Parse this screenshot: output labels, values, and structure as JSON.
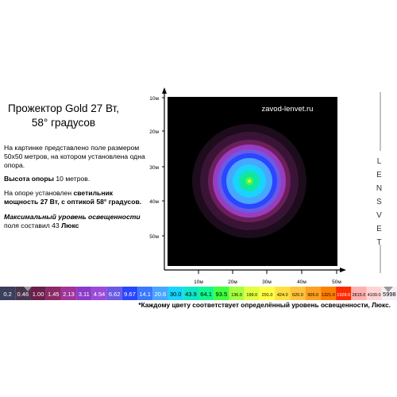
{
  "heading": [
    "Прожектор Gold 27 Вт,",
    "58° градусов"
  ],
  "paragraphs": [
    [
      "На картинке представлено  поле размером 50x50 метров, на котором установлена  одна опора."
    ],
    [
      "Высота опоры",
      "10 метров."
    ],
    [
      "На опоре установлен",
      "светильник мощность 27 Вт, с оптикой 58° градусов."
    ],
    [
      "Максимальный уровень освещенности",
      "поля  составил 43",
      "Люкс"
    ]
  ],
  "plot": {
    "watermark": "zavod-lenvet.ru",
    "y_labels": [
      "10м",
      "20м",
      "30м",
      "40м",
      "50м"
    ],
    "x_labels": [
      "10м",
      "20м",
      "30м",
      "40м",
      "50м"
    ]
  },
  "brand": "LENSVET",
  "scale": [
    {
      "label": "0.2",
      "color": "#3a3f5c"
    },
    {
      "label": "0.46",
      "color": "#4a3550"
    },
    {
      "label": "1.00",
      "color": "#6b1f4a"
    },
    {
      "label": "1.45",
      "color": "#8a2a66"
    },
    {
      "label": "2.13",
      "color": "#a0349a"
    },
    {
      "label": "3.11",
      "color": "#8a3cc8"
    },
    {
      "label": "4.54",
      "color": "#9a4ad8"
    },
    {
      "label": "6.62",
      "color": "#6a5ae6"
    },
    {
      "label": "9.67",
      "color": "#2a46ff"
    },
    {
      "label": "14.1",
      "color": "#3a78ff"
    },
    {
      "label": "20.6",
      "color": "#48a6ff"
    },
    {
      "label": "30.0",
      "color": "#18d4ff"
    },
    {
      "label": "43.9",
      "color": "#10e6c8"
    },
    {
      "label": "64.1",
      "color": "#10f890"
    },
    {
      "label": "93.5",
      "color": "#40ff40"
    },
    {
      "label": "136.0",
      "color": "#a6ff40"
    },
    {
      "label": "199.0",
      "color": "#e2ff40"
    },
    {
      "label": "291.0",
      "color": "#ffff44"
    },
    {
      "label": "424.0",
      "color": "#ffe040"
    },
    {
      "label": "620.0",
      "color": "#ffc43c"
    },
    {
      "label": "905.0",
      "color": "#ffa020"
    },
    {
      "label": "1321.0",
      "color": "#ff8000"
    },
    {
      "label": "1928.0",
      "color": "#ff2a00"
    },
    {
      "label": "2815.0",
      "color": "#ffb0b0"
    },
    {
      "label": "4109.0",
      "color": "#ffd4d4"
    },
    {
      "label": "5998",
      "color": "#f4f0f4"
    }
  ],
  "footnote": "*Каждому цвету соответствует  определённый уровень освещенности, Люкс."
}
